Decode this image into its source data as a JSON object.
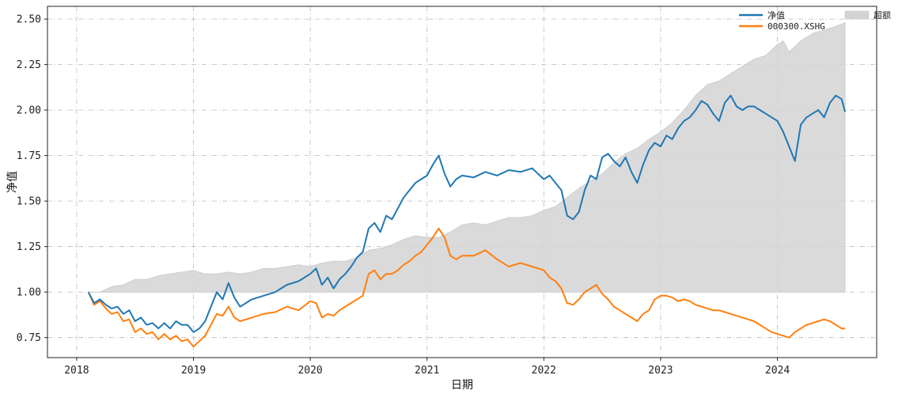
{
  "chart_data": {
    "type": "line",
    "title": "",
    "xlabel": "日期",
    "ylabel": "净值",
    "xlim": [
      2017.75,
      2024.85
    ],
    "ylim": [
      0.64,
      2.57
    ],
    "x_ticks": [
      2018,
      2019,
      2020,
      2021,
      2022,
      2023,
      2024
    ],
    "x_tick_labels": [
      "2018",
      "2019",
      "2020",
      "2021",
      "2022",
      "2023",
      "2024"
    ],
    "y_ticks": [
      0.75,
      1.0,
      1.25,
      1.5,
      1.75,
      2.0,
      2.25,
      2.5
    ],
    "y_tick_labels": [
      "0.75",
      "1.00",
      "1.25",
      "1.50",
      "1.75",
      "2.00",
      "2.25",
      "2.50"
    ],
    "grid": true,
    "legend_position": "top-right",
    "colors": {
      "nav": "#1f77b4",
      "index": "#ff7f0e",
      "excess": "#d3d3d3"
    },
    "series": [
      {
        "name": "净值",
        "kind": "line",
        "x": [
          2018.1,
          2018.15,
          2018.2,
          2018.25,
          2018.3,
          2018.35,
          2018.4,
          2018.45,
          2018.5,
          2018.55,
          2018.6,
          2018.65,
          2018.7,
          2018.75,
          2018.8,
          2018.85,
          2018.9,
          2018.95,
          2019.0,
          2019.05,
          2019.1,
          2019.15,
          2019.2,
          2019.25,
          2019.3,
          2019.35,
          2019.4,
          2019.5,
          2019.6,
          2019.7,
          2019.8,
          2019.9,
          2020.0,
          2020.05,
          2020.1,
          2020.15,
          2020.2,
          2020.25,
          2020.3,
          2020.35,
          2020.4,
          2020.45,
          2020.5,
          2020.55,
          2020.6,
          2020.65,
          2020.7,
          2020.75,
          2020.8,
          2020.85,
          2020.9,
          2020.95,
          2021.0,
          2021.05,
          2021.1,
          2021.15,
          2021.2,
          2021.25,
          2021.3,
          2021.4,
          2021.5,
          2021.6,
          2021.7,
          2021.8,
          2021.9,
          2022.0,
          2022.05,
          2022.1,
          2022.15,
          2022.2,
          2022.25,
          2022.3,
          2022.35,
          2022.4,
          2022.45,
          2022.5,
          2022.55,
          2022.6,
          2022.65,
          2022.7,
          2022.75,
          2022.8,
          2022.85,
          2022.9,
          2022.95,
          2023.0,
          2023.05,
          2023.1,
          2023.15,
          2023.2,
          2023.25,
          2023.3,
          2023.35,
          2023.4,
          2023.45,
          2023.5,
          2023.55,
          2023.6,
          2023.65,
          2023.7,
          2023.75,
          2023.8,
          2023.85,
          2023.9,
          2023.95,
          2024.0,
          2024.05,
          2024.1,
          2024.15,
          2024.2,
          2024.25,
          2024.3,
          2024.35,
          2024.4,
          2024.45,
          2024.5,
          2024.55,
          2024.58
        ],
        "values": [
          1.0,
          0.94,
          0.96,
          0.93,
          0.91,
          0.92,
          0.88,
          0.9,
          0.84,
          0.86,
          0.82,
          0.83,
          0.8,
          0.83,
          0.8,
          0.84,
          0.82,
          0.82,
          0.78,
          0.8,
          0.84,
          0.92,
          1.0,
          0.96,
          1.05,
          0.97,
          0.92,
          0.96,
          0.98,
          1.0,
          1.04,
          1.06,
          1.1,
          1.13,
          1.04,
          1.08,
          1.02,
          1.07,
          1.1,
          1.14,
          1.19,
          1.22,
          1.35,
          1.38,
          1.33,
          1.42,
          1.4,
          1.46,
          1.52,
          1.56,
          1.6,
          1.62,
          1.64,
          1.7,
          1.75,
          1.65,
          1.58,
          1.62,
          1.64,
          1.63,
          1.66,
          1.64,
          1.67,
          1.66,
          1.68,
          1.62,
          1.64,
          1.6,
          1.56,
          1.42,
          1.4,
          1.44,
          1.56,
          1.64,
          1.62,
          1.74,
          1.76,
          1.72,
          1.69,
          1.74,
          1.66,
          1.6,
          1.7,
          1.78,
          1.82,
          1.8,
          1.86,
          1.84,
          1.9,
          1.94,
          1.96,
          2.0,
          2.05,
          2.03,
          1.98,
          1.94,
          2.04,
          2.08,
          2.02,
          2.0,
          2.02,
          2.02,
          2.0,
          1.98,
          1.96,
          1.94,
          1.88,
          1.8,
          1.72,
          1.92,
          1.96,
          1.98,
          2.0,
          1.96,
          2.04,
          2.08,
          2.06,
          1.99
        ]
      },
      {
        "name": "000300.XSHG",
        "kind": "line",
        "x": [
          2018.1,
          2018.15,
          2018.2,
          2018.25,
          2018.3,
          2018.35,
          2018.4,
          2018.45,
          2018.5,
          2018.55,
          2018.6,
          2018.65,
          2018.7,
          2018.75,
          2018.8,
          2018.85,
          2018.9,
          2018.95,
          2019.0,
          2019.05,
          2019.1,
          2019.15,
          2019.2,
          2019.25,
          2019.3,
          2019.35,
          2019.4,
          2019.5,
          2019.6,
          2019.7,
          2019.8,
          2019.9,
          2020.0,
          2020.05,
          2020.1,
          2020.15,
          2020.2,
          2020.25,
          2020.3,
          2020.35,
          2020.4,
          2020.45,
          2020.5,
          2020.55,
          2020.6,
          2020.65,
          2020.7,
          2020.75,
          2020.8,
          2020.85,
          2020.9,
          2020.95,
          2021.0,
          2021.05,
          2021.1,
          2021.15,
          2021.2,
          2021.25,
          2021.3,
          2021.4,
          2021.5,
          2021.6,
          2021.7,
          2021.8,
          2021.9,
          2022.0,
          2022.05,
          2022.1,
          2022.15,
          2022.2,
          2022.25,
          2022.3,
          2022.35,
          2022.4,
          2022.45,
          2022.5,
          2022.55,
          2022.6,
          2022.65,
          2022.7,
          2022.75,
          2022.8,
          2022.85,
          2022.9,
          2022.95,
          2023.0,
          2023.05,
          2023.1,
          2023.15,
          2023.2,
          2023.25,
          2023.3,
          2023.35,
          2023.4,
          2023.45,
          2023.5,
          2023.55,
          2023.6,
          2023.65,
          2023.7,
          2023.75,
          2023.8,
          2023.85,
          2023.9,
          2023.95,
          2024.0,
          2024.05,
          2024.1,
          2024.15,
          2024.2,
          2024.25,
          2024.3,
          2024.35,
          2024.4,
          2024.45,
          2024.5,
          2024.55,
          2024.58
        ],
        "values": [
          1.0,
          0.93,
          0.95,
          0.91,
          0.88,
          0.89,
          0.84,
          0.85,
          0.78,
          0.8,
          0.77,
          0.78,
          0.74,
          0.77,
          0.74,
          0.76,
          0.73,
          0.74,
          0.7,
          0.73,
          0.76,
          0.82,
          0.88,
          0.87,
          0.92,
          0.86,
          0.84,
          0.86,
          0.88,
          0.89,
          0.92,
          0.9,
          0.95,
          0.94,
          0.86,
          0.88,
          0.87,
          0.9,
          0.92,
          0.94,
          0.96,
          0.98,
          1.1,
          1.12,
          1.07,
          1.1,
          1.1,
          1.12,
          1.15,
          1.17,
          1.2,
          1.22,
          1.26,
          1.3,
          1.35,
          1.3,
          1.2,
          1.18,
          1.2,
          1.2,
          1.23,
          1.18,
          1.14,
          1.16,
          1.14,
          1.12,
          1.08,
          1.06,
          1.02,
          0.94,
          0.93,
          0.96,
          1.0,
          1.02,
          1.04,
          0.99,
          0.96,
          0.92,
          0.9,
          0.88,
          0.86,
          0.84,
          0.88,
          0.9,
          0.96,
          0.98,
          0.98,
          0.97,
          0.95,
          0.96,
          0.95,
          0.93,
          0.92,
          0.91,
          0.9,
          0.9,
          0.89,
          0.88,
          0.87,
          0.86,
          0.85,
          0.84,
          0.82,
          0.8,
          0.78,
          0.77,
          0.76,
          0.75,
          0.78,
          0.8,
          0.82,
          0.83,
          0.84,
          0.85,
          0.84,
          0.82,
          0.8,
          0.8
        ]
      },
      {
        "name": "超额",
        "kind": "area",
        "baseline": 1.0,
        "x": [
          2018.1,
          2018.2,
          2018.3,
          2018.4,
          2018.5,
          2018.6,
          2018.7,
          2018.8,
          2018.9,
          2019.0,
          2019.1,
          2019.2,
          2019.3,
          2019.4,
          2019.5,
          2019.6,
          2019.7,
          2019.8,
          2019.9,
          2020.0,
          2020.1,
          2020.2,
          2020.3,
          2020.4,
          2020.5,
          2020.6,
          2020.7,
          2020.8,
          2020.9,
          2021.0,
          2021.1,
          2021.2,
          2021.3,
          2021.4,
          2021.5,
          2021.6,
          2021.7,
          2021.8,
          2021.9,
          2022.0,
          2022.1,
          2022.2,
          2022.3,
          2022.4,
          2022.5,
          2022.6,
          2022.7,
          2022.8,
          2022.9,
          2023.0,
          2023.1,
          2023.2,
          2023.3,
          2023.4,
          2023.5,
          2023.6,
          2023.7,
          2023.8,
          2023.9,
          2024.0,
          2024.05,
          2024.1,
          2024.2,
          2024.3,
          2024.4,
          2024.5,
          2024.58
        ],
        "values": [
          1.0,
          1.0,
          1.03,
          1.04,
          1.07,
          1.07,
          1.09,
          1.1,
          1.11,
          1.12,
          1.1,
          1.1,
          1.11,
          1.1,
          1.11,
          1.13,
          1.13,
          1.14,
          1.15,
          1.14,
          1.16,
          1.17,
          1.17,
          1.19,
          1.23,
          1.24,
          1.26,
          1.29,
          1.31,
          1.3,
          1.3,
          1.33,
          1.37,
          1.38,
          1.37,
          1.39,
          1.41,
          1.41,
          1.42,
          1.45,
          1.47,
          1.52,
          1.57,
          1.61,
          1.65,
          1.71,
          1.76,
          1.79,
          1.84,
          1.88,
          1.93,
          2.0,
          2.08,
          2.14,
          2.16,
          2.2,
          2.24,
          2.28,
          2.3,
          2.36,
          2.38,
          2.32,
          2.38,
          2.42,
          2.44,
          2.46,
          2.48
        ]
      }
    ]
  }
}
